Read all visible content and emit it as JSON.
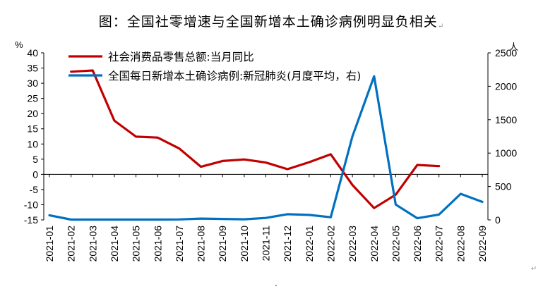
{
  "title": "图：全国社零增速与全国新增本土确诊病例明显负相关",
  "chart_data": {
    "type": "line",
    "categories": [
      "2021-01",
      "2021-02",
      "2021-03",
      "2021-04",
      "2021-05",
      "2021-06",
      "2021-07",
      "2021-08",
      "2021-09",
      "2021-10",
      "2021-11",
      "2021-12",
      "2022-01",
      "2022-02",
      "2022-03",
      "2022-04",
      "2022-05",
      "2022-06",
      "2022-07",
      "2022-08",
      "2022-09"
    ],
    "series": [
      {
        "name": "社会消费品零售总额:当月同比",
        "axis": "left",
        "color": "#c00000",
        "values": [
          null,
          33.8,
          34.2,
          17.7,
          12.4,
          12.1,
          8.5,
          2.5,
          4.4,
          4.9,
          3.9,
          1.7,
          4.0,
          6.6,
          -3.5,
          -11.1,
          -6.7,
          3.1,
          2.7,
          null,
          null
        ]
      },
      {
        "name": "全国每日新增本土确诊病例:新冠肺炎(月度平均，右)",
        "axis": "right",
        "color": "#0070c0",
        "values": [
          70,
          5,
          5,
          5,
          5,
          5,
          7,
          20,
          15,
          10,
          30,
          85,
          75,
          40,
          1250,
          2150,
          230,
          25,
          80,
          390,
          270
        ]
      }
    ],
    "y_left": {
      "unit": "%",
      "ticks": [
        40,
        35,
        30,
        25,
        20,
        15,
        10,
        5,
        0,
        -5,
        -10,
        -15
      ],
      "range": [
        -15,
        40
      ]
    },
    "y_right": {
      "unit": "人",
      "ticks": [
        2500,
        2000,
        1500,
        1000,
        500,
        0
      ],
      "range": [
        0,
        2500
      ]
    },
    "grid": false,
    "legend_placement": "top-left"
  }
}
